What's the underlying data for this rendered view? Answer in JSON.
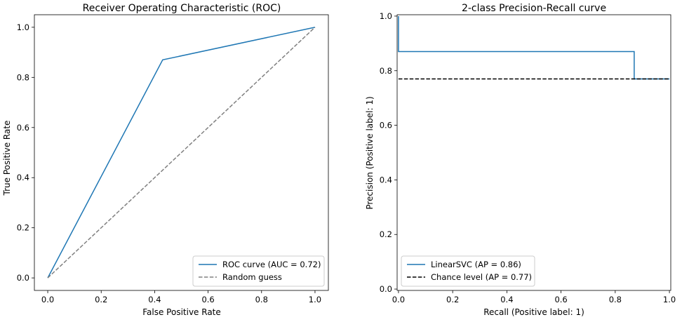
{
  "chart_data": [
    {
      "type": "line",
      "title": "Receiver Operating Characteristic (ROC)",
      "xlabel": "False Positive Rate",
      "ylabel": "True Positive Rate",
      "xlim": [
        -0.05,
        1.05
      ],
      "ylim": [
        -0.05,
        1.05
      ],
      "xticks": [
        0.0,
        0.2,
        0.4,
        0.6,
        0.8,
        1.0
      ],
      "yticks": [
        0.0,
        0.2,
        0.4,
        0.6,
        0.8,
        1.0
      ],
      "tick_labels": [
        "0.0",
        "0.2",
        "0.4",
        "0.6",
        "0.8",
        "1.0"
      ],
      "legend_position": "lower-right",
      "series": [
        {
          "name": "ROC curve (AUC = 0.72)",
          "color": "#1f77b4",
          "dash": "solid",
          "x": [
            0.0,
            0.43,
            1.0
          ],
          "y": [
            0.0,
            0.87,
            1.0
          ]
        },
        {
          "name": "Random guess",
          "color": "#808080",
          "dash": "dashed",
          "x": [
            0.0,
            1.0
          ],
          "y": [
            0.0,
            1.0
          ]
        }
      ]
    },
    {
      "type": "line",
      "title": "2-class Precision-Recall curve",
      "xlabel": "Recall (Positive label: 1)",
      "ylabel": "Precision (Positive label: 1)",
      "xlim": [
        -0.005,
        1.005
      ],
      "ylim": [
        -0.005,
        1.005
      ],
      "xticks": [
        0.0,
        0.2,
        0.4,
        0.6,
        0.8,
        1.0
      ],
      "yticks": [
        0.0,
        0.2,
        0.4,
        0.6,
        0.8,
        1.0
      ],
      "tick_labels": [
        "0.0",
        "0.2",
        "0.4",
        "0.6",
        "0.8",
        "1.0"
      ],
      "legend_position": "lower-left",
      "series": [
        {
          "name": "LinearSVC (AP = 0.86)",
          "color": "#1f77b4",
          "dash": "solid",
          "x": [
            0.0,
            0.0,
            0.87,
            0.87,
            1.0
          ],
          "y": [
            1.0,
            0.87,
            0.87,
            0.77,
            0.77
          ]
        },
        {
          "name": "Chance level (AP = 0.77)",
          "color": "#000000",
          "dash": "dashed",
          "x": [
            0.0,
            1.0
          ],
          "y": [
            0.77,
            0.77
          ]
        }
      ]
    }
  ]
}
